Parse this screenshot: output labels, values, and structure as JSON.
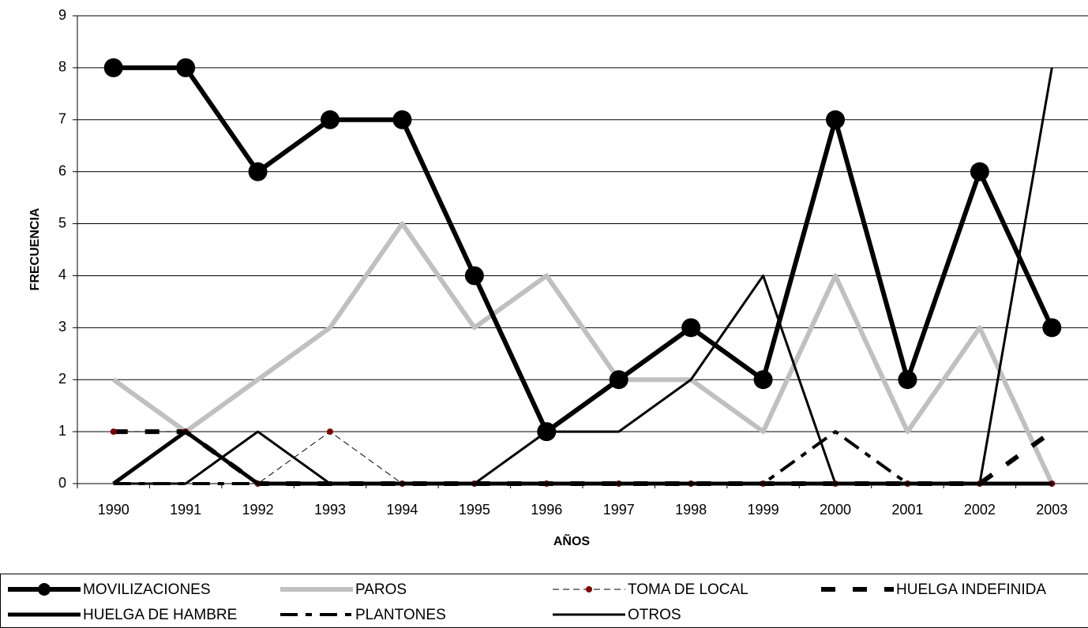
{
  "chart_data": {
    "type": "line",
    "x_label": "AÑOS",
    "y_label": "FRECUENCIA",
    "categories": [
      "1990",
      "1991",
      "1992",
      "1993",
      "1994",
      "1995",
      "1996",
      "1997",
      "1998",
      "1999",
      "2000",
      "2001",
      "2002",
      "2003"
    ],
    "series": [
      {
        "name": "MOVILIZACIONES",
        "color": "#000000",
        "values": [
          8,
          8,
          6,
          7,
          7,
          4,
          1,
          2,
          3,
          2,
          7,
          2,
          6,
          3
        ]
      },
      {
        "name": "PAROS",
        "color": "#c0c0c0",
        "values": [
          2,
          1,
          2,
          3,
          5,
          3,
          4,
          2,
          2,
          1,
          4,
          1,
          3,
          0
        ]
      },
      {
        "name": "TOMA DE LOCAL",
        "color": "#000000",
        "values": [
          1,
          1,
          0,
          1,
          0,
          0,
          0,
          0,
          0,
          0,
          0,
          0,
          0,
          0
        ]
      },
      {
        "name": "HUELGA INDEFINIDA",
        "color": "#000000",
        "values": [
          1,
          1,
          0,
          0,
          0,
          0,
          0,
          0,
          0,
          0,
          0,
          0,
          0,
          1
        ]
      },
      {
        "name": "HUELGA DE HAMBRE",
        "color": "#000000",
        "values": [
          0,
          1,
          0,
          0,
          0,
          0,
          0,
          0,
          0,
          0,
          0,
          0,
          0,
          0
        ]
      },
      {
        "name": "PLANTONES",
        "color": "#000000",
        "values": [
          0,
          0,
          0,
          0,
          0,
          0,
          0,
          0,
          0,
          0,
          1,
          0,
          0,
          0
        ]
      },
      {
        "name": "OTROS",
        "color": "#000000",
        "values": [
          0,
          0,
          1,
          0,
          0,
          0,
          1,
          1,
          2,
          4,
          0,
          0,
          0,
          8
        ]
      }
    ],
    "ylim": [
      0,
      9
    ],
    "yticks": [
      0,
      1,
      2,
      3,
      4,
      5,
      6,
      7,
      8,
      9
    ],
    "grid": true,
    "legend": "bottom"
  }
}
